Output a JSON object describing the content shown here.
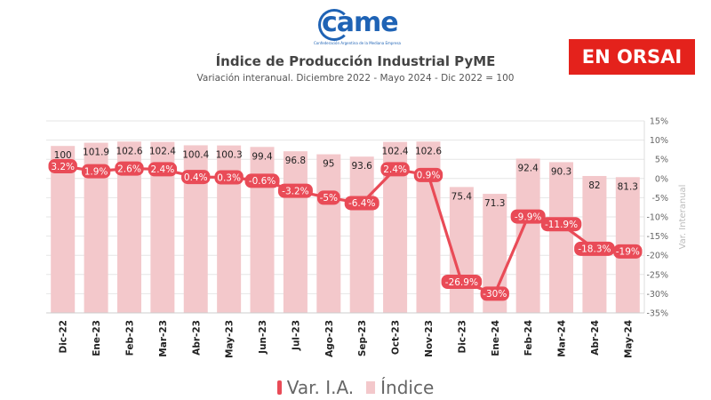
{
  "header": {
    "logo_text": "came",
    "logo_subtext": "Confederación Argentina de la Mediana Empresa",
    "badge": "EN ORSAI"
  },
  "chart_data": {
    "type": "bar",
    "title": "Índice de Producción Industrial PyME",
    "subtitle": "Variación interanual. Diciembre 2022 - Mayo 2024 - Dic 2022 = 100",
    "categories": [
      "Dic-22",
      "Ene-23",
      "Feb-23",
      "Mar-23",
      "Abr-23",
      "May-23",
      "Jun-23",
      "Jul-23",
      "Ago-23",
      "Sep-23",
      "Oct-23",
      "Nov-23",
      "Dic-23",
      "Ene-24",
      "Feb-24",
      "Mar-24",
      "Abr-24",
      "May-24"
    ],
    "series": [
      {
        "name": "Índice",
        "type": "bar",
        "axis": "left",
        "values": [
          100,
          101.9,
          102.6,
          102.4,
          100.4,
          100.3,
          99.4,
          96.8,
          95,
          93.6,
          102.4,
          102.6,
          75.4,
          71.3,
          92.4,
          90.3,
          82,
          81.3
        ],
        "labels": [
          "100",
          "101.9",
          "102.6",
          "102.4",
          "100.4",
          "100.3",
          "99.4",
          "96.8",
          "95",
          "93.6",
          "102.4",
          "102.6",
          "75.4",
          "71.3",
          "92.4",
          "90.3",
          "82",
          "81.3"
        ],
        "color": "#f3c8cb"
      },
      {
        "name": "Var. I.A.",
        "type": "line",
        "axis": "right",
        "values": [
          3.2,
          1.9,
          2.6,
          2.4,
          0.4,
          0.3,
          -0.6,
          -3.2,
          -5,
          -6.4,
          2.4,
          0.9,
          -26.9,
          -30,
          -9.9,
          -11.9,
          -18.3,
          -19
        ],
        "labels": [
          "3.2%",
          "1.9%",
          "2.6%",
          "2.4%",
          "0.4%",
          "0.3%",
          "-0.6%",
          "-3.2%",
          "-5%",
          "-6.4%",
          "2.4%",
          "0.9%",
          "-26.9%",
          "-30%",
          "-9.9%",
          "-11.9%",
          "-18.3%",
          "-19%"
        ],
        "color": "#e94b57"
      }
    ],
    "y_left_range": [
      0,
      115
    ],
    "y_right": {
      "label": "Var. Interanual",
      "range": [
        -35,
        15
      ],
      "ticks": [
        15,
        10,
        5,
        0,
        -5,
        -10,
        -15,
        -20,
        -25,
        -30,
        -35
      ],
      "tick_labels": [
        "15%",
        "10%",
        "5%",
        "0%",
        "-5%",
        "-10%",
        "-15%",
        "-20%",
        "-25%",
        "-30%",
        "-35%"
      ]
    },
    "grid": true,
    "legend_position": "bottom"
  },
  "colors": {
    "line": "#e94b57",
    "bar": "#f3c8cb",
    "badge": "#e4221c",
    "logo": "#1f63b5"
  }
}
